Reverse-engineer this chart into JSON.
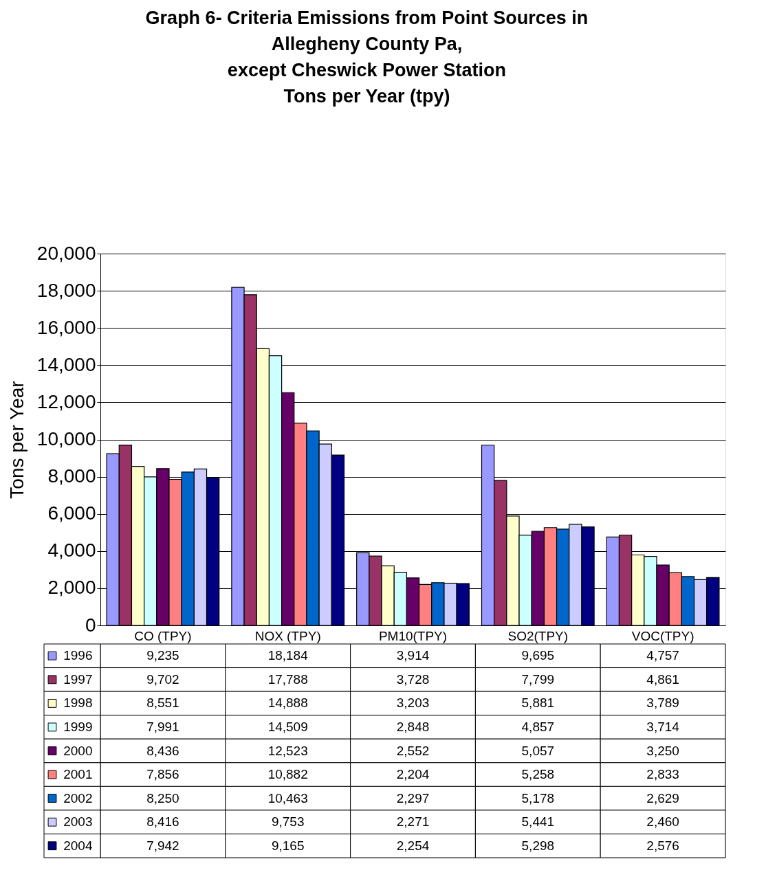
{
  "chart_data": {
    "type": "bar",
    "title": [
      "Graph 6- Criteria Emissions from Point Sources in",
      "Allegheny County Pa,",
      "except Cheswick Power Station",
      "Tons per Year (tpy)"
    ],
    "ylabel": "Tons per Year",
    "categories": [
      "CO (TPY)",
      "NOX (TPY)",
      "PM10(TPY)",
      "SO2(TPY)",
      "VOC(TPY)"
    ],
    "series": [
      {
        "name": "1996",
        "color": "#9999ff",
        "values": [
          9235,
          18184,
          3914,
          9695,
          4757
        ],
        "value_labels": [
          "9,235",
          "18,184",
          "3,914",
          "9,695",
          "4,757"
        ]
      },
      {
        "name": "1997",
        "color": "#993366",
        "values": [
          9702,
          17788,
          3728,
          7799,
          4861
        ],
        "value_labels": [
          "9,702",
          "17,788",
          "3,728",
          "7,799",
          "4,861"
        ]
      },
      {
        "name": "1998",
        "color": "#ffffcc",
        "values": [
          8551,
          14888,
          3203,
          5881,
          3789
        ],
        "value_labels": [
          "8,551",
          "14,888",
          "3,203",
          "5,881",
          "3,789"
        ]
      },
      {
        "name": "1999",
        "color": "#ccffff",
        "values": [
          7991,
          14509,
          2848,
          4857,
          3714
        ],
        "value_labels": [
          "7,991",
          "14,509",
          "2,848",
          "4,857",
          "3,714"
        ]
      },
      {
        "name": "2000",
        "color": "#660066",
        "values": [
          8436,
          12523,
          2552,
          5057,
          3250
        ],
        "value_labels": [
          "8,436",
          "12,523",
          "2,552",
          "5,057",
          "3,250"
        ]
      },
      {
        "name": "2001",
        "color": "#ff8080",
        "values": [
          7856,
          10882,
          2204,
          5258,
          2833
        ],
        "value_labels": [
          "7,856",
          "10,882",
          "2,204",
          "5,258",
          "2,833"
        ]
      },
      {
        "name": "2002",
        "color": "#0066cc",
        "values": [
          8250,
          10463,
          2297,
          5178,
          2629
        ],
        "value_labels": [
          "8,250",
          "10,463",
          "2,297",
          "5,178",
          "2,629"
        ]
      },
      {
        "name": "2003",
        "color": "#ccccff",
        "values": [
          8416,
          9753,
          2271,
          5441,
          2460
        ],
        "value_labels": [
          "8,416",
          "9,753",
          "2,271",
          "5,441",
          "2,460"
        ]
      },
      {
        "name": "2004",
        "color": "#000080",
        "values": [
          7942,
          9165,
          2254,
          5298,
          2576
        ],
        "value_labels": [
          "7,942",
          "9,165",
          "2,254",
          "5,298",
          "2,576"
        ]
      }
    ],
    "ylim": [
      0,
      20000
    ],
    "yticks": [
      0,
      {
        "value": 2000,
        "label": "2,000"
      },
      {
        "value": 4000,
        "label": "4,000"
      },
      {
        "value": 6000,
        "label": "6,000"
      },
      {
        "value": 8000,
        "label": "8,000"
      },
      {
        "value": 10000,
        "label": "10,000"
      },
      {
        "value": 12000,
        "label": "12,000"
      },
      {
        "value": 14000,
        "label": "14,000"
      },
      {
        "value": 16000,
        "label": "16,000"
      },
      {
        "value": 18000,
        "label": "18,000"
      },
      {
        "value": 20000,
        "label": "20,000"
      }
    ],
    "grid": "y",
    "legend": "bottom"
  }
}
